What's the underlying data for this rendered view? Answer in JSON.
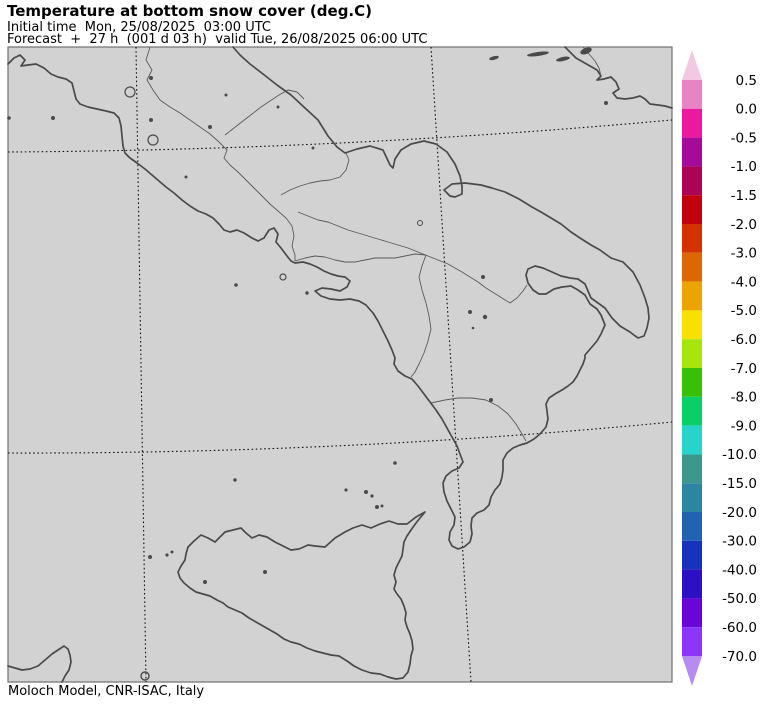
{
  "header": {
    "title": "Temperature at bottom snow cover (deg.C)",
    "initial_time": "Initial time  Mon, 25/08/2025  03:00 UTC",
    "forecast": "Forecast  +  27 h  (001 d 03 h)  valid Tue, 26/08/2025 06:00 UTC"
  },
  "footer": {
    "credit": "Moloch Model, CNR-ISAC, Italy"
  },
  "map": {
    "field_background": "#d2d2d2",
    "coastline_color": "#4a4a4a",
    "region_border_color": "#5a5a5a",
    "graticule_color": "#111111",
    "frame_color": "#707070"
  },
  "colorbar": {
    "units": "deg.C",
    "over_arrow_color": "#f2c9e1",
    "under_arrow_color": "#b68cf2",
    "tick_labels": [
      "0.5",
      "0.0",
      "-0.5",
      "-1.0",
      "-1.5",
      "-2.0",
      "-3.0",
      "-4.0",
      "-5.0",
      "-6.0",
      "-7.0",
      "-8.0",
      "-9.0",
      "-10.0",
      "-15.0",
      "-20.0",
      "-30.0",
      "-40.0",
      "-50.0",
      "-60.0",
      "-70.0"
    ],
    "tick_values": [
      0.5,
      0.0,
      -0.5,
      -1.0,
      -1.5,
      -2.0,
      -3.0,
      -4.0,
      -5.0,
      -6.0,
      -7.0,
      -8.0,
      -9.0,
      -10.0,
      -15.0,
      -20.0,
      -30.0,
      -40.0,
      -50.0,
      -60.0,
      -70.0
    ],
    "segment_colors": [
      "#e884c4",
      "#ec18a0",
      "#a50a9b",
      "#ad0355",
      "#c3000e",
      "#d23300",
      "#de6800",
      "#eba400",
      "#f8e000",
      "#a6e60d",
      "#38c005",
      "#0ace68",
      "#26d4cc",
      "#3a998c",
      "#2c86a2",
      "#2163b2",
      "#1733bb",
      "#2d10c4",
      "#6a05d8",
      "#8c35ff"
    ]
  }
}
